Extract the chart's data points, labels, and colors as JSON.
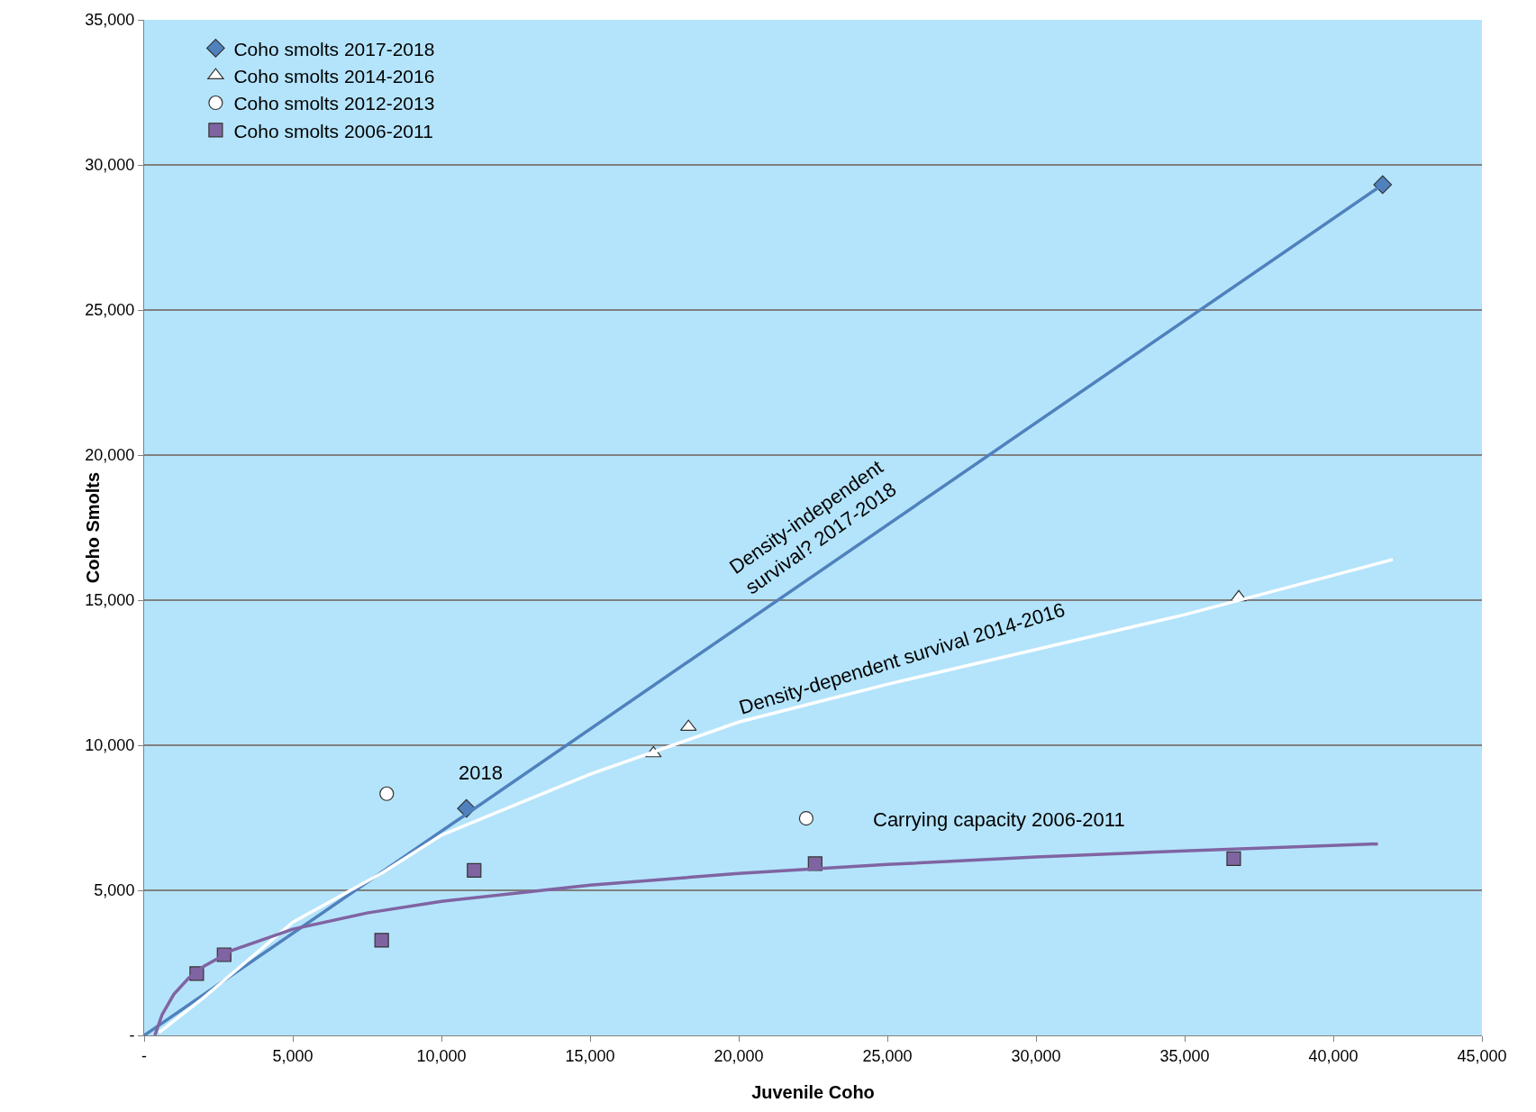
{
  "chart_data": {
    "type": "scatter",
    "xlabel": "Juvenile Coho",
    "ylabel": "Coho Smolts",
    "xlim": [
      0,
      45000
    ],
    "xticks": [
      {
        "value": 0,
        "label": "-"
      },
      {
        "value": 5000,
        "label": "5,000"
      },
      {
        "value": 10000,
        "label": "10,000"
      },
      {
        "value": 15000,
        "label": "15,000"
      },
      {
        "value": 20000,
        "label": "20,000"
      },
      {
        "value": 25000,
        "label": "25,000"
      },
      {
        "value": 30000,
        "label": "30,000"
      },
      {
        "value": 35000,
        "label": "35,000"
      },
      {
        "value": 40000,
        "label": "40,000"
      },
      {
        "value": 45000,
        "label": "45,000"
      }
    ],
    "ylim": [
      0,
      35000
    ],
    "yticks": [
      {
        "value": 0,
        "label": "-"
      },
      {
        "value": 5000,
        "label": "5,000"
      },
      {
        "value": 10000,
        "label": "10,000"
      },
      {
        "value": 15000,
        "label": "15,000"
      },
      {
        "value": 20000,
        "label": "20,000"
      },
      {
        "value": 25000,
        "label": "25,000"
      },
      {
        "value": 30000,
        "label": "30,000"
      },
      {
        "value": 35000,
        "label": "35,000"
      }
    ],
    "grid": "y",
    "legend": "top left",
    "series": [
      {
        "name": "Coho smolts 2017-2018",
        "marker": "diamond",
        "color": "#4f81bd",
        "x": [
          10840,
          41660
        ],
        "values": [
          7820,
          29320
        ]
      },
      {
        "name": "Coho smolts 2014-2016",
        "marker": "triangle",
        "color": "#ffffff",
        "x": [
          17130,
          18310,
          36820
        ],
        "values": [
          9720,
          10630,
          15100
        ]
      },
      {
        "name": "Coho smolts 2012-2013",
        "marker": "circle",
        "color": "#ffffff",
        "x": [
          8160,
          22270
        ],
        "values": [
          8330,
          7480
        ]
      },
      {
        "name": "Coho smolts 2006-2011",
        "marker": "square",
        "color": "#8064a2",
        "x": [
          1770,
          2690,
          7990,
          11100,
          22570,
          36650
        ],
        "values": [
          2130,
          2780,
          3280,
          5690,
          5920,
          6090
        ]
      },
      {
        "type": "line",
        "marker": "none",
        "color": "#4f81bd",
        "x": [
          0,
          41660
        ],
        "values": [
          0,
          29320
        ]
      },
      {
        "type": "line",
        "marker": "none",
        "color": "#ffffff",
        "x": [
          500,
          2000,
          5000,
          8000,
          10000,
          15000,
          20000,
          25000,
          30000,
          35000,
          42000
        ],
        "values": [
          100,
          1300,
          3900,
          5600,
          6900,
          9000,
          10800,
          12100,
          13300,
          14500,
          16400
        ]
      },
      {
        "type": "line",
        "marker": "none",
        "color": "#8064a2",
        "x": [
          360,
          600,
          1000,
          1500,
          2000,
          3000,
          5000,
          7500,
          10000,
          15000,
          20000,
          25000,
          30000,
          35000,
          41500
        ],
        "values": [
          0,
          710,
          1420,
          1980,
          2380,
          2950,
          3660,
          4220,
          4620,
          5180,
          5580,
          5890,
          6150,
          6360,
          6600
        ]
      }
    ],
    "annotations": [
      "Density-independent\nsurvival? 2017-2018",
      "Density-dependent survival 2014-2016",
      "Carrying capacity 2006-2011",
      "2018"
    ]
  }
}
